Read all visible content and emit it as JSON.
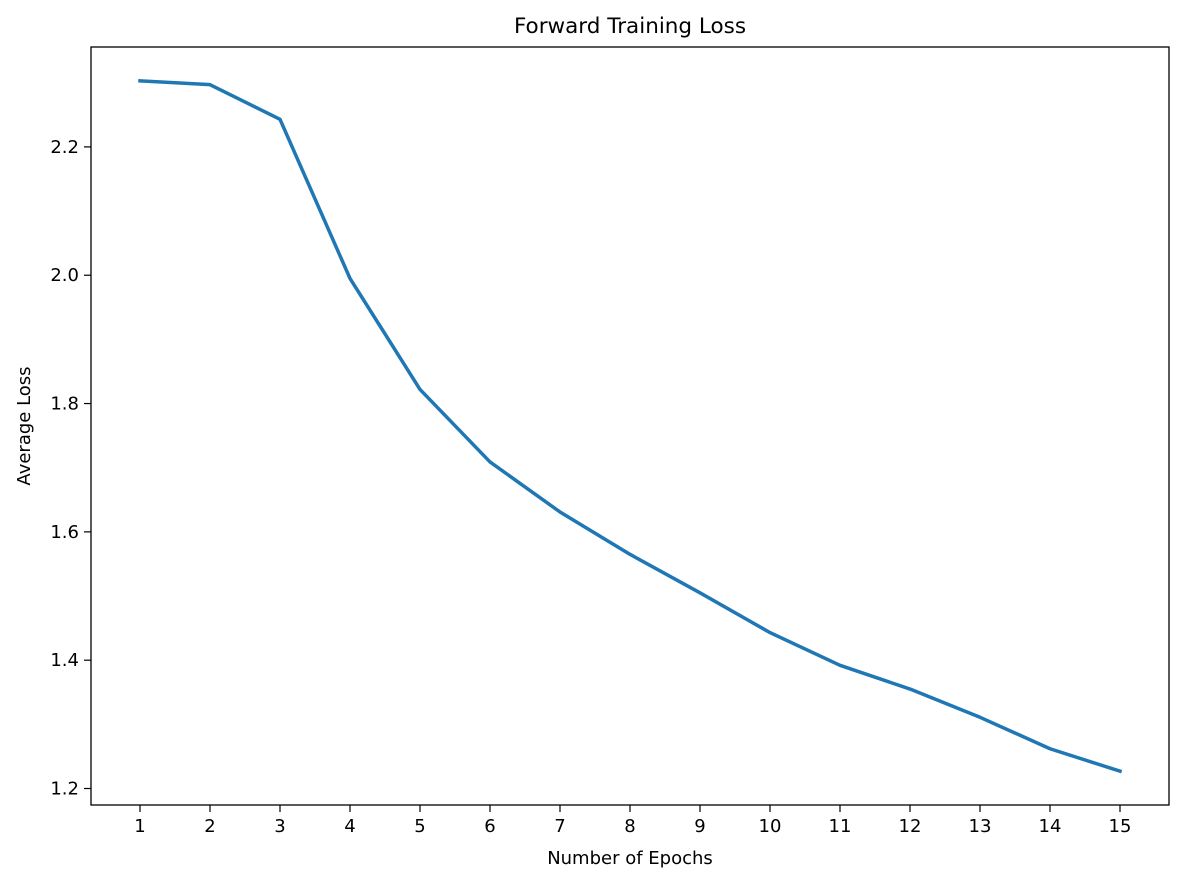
{
  "chart_data": {
    "type": "line",
    "title": "Forward Training Loss",
    "xlabel": "Number of Epochs",
    "ylabel": "Average Loss",
    "x": [
      1,
      2,
      3,
      4,
      5,
      6,
      7,
      8,
      9,
      10,
      11,
      12,
      13,
      14,
      15
    ],
    "series": [
      {
        "values": [
          2.303,
          2.297,
          2.243,
          1.995,
          1.822,
          1.709,
          1.631,
          1.565,
          1.505,
          1.443,
          1.392,
          1.355,
          1.311,
          1.262,
          1.227
        ],
        "color": "#1f77b4"
      }
    ],
    "xlim": [
      0.3,
      15.7
    ],
    "ylim": [
      1.1743,
      2.3557
    ],
    "x_ticks": [
      1,
      2,
      3,
      4,
      5,
      6,
      7,
      8,
      9,
      10,
      11,
      12,
      13,
      14,
      15
    ],
    "x_tick_labels": [
      "1",
      "2",
      "3",
      "4",
      "5",
      "6",
      "7",
      "8",
      "9",
      "10",
      "11",
      "12",
      "13",
      "14",
      "15"
    ],
    "y_ticks": [
      1.2,
      1.4,
      1.6,
      1.8,
      2.0,
      2.2
    ],
    "y_tick_labels": [
      "1.2",
      "1.4",
      "1.6",
      "1.8",
      "2.0",
      "2.2"
    ],
    "grid": false,
    "legend": "none"
  }
}
